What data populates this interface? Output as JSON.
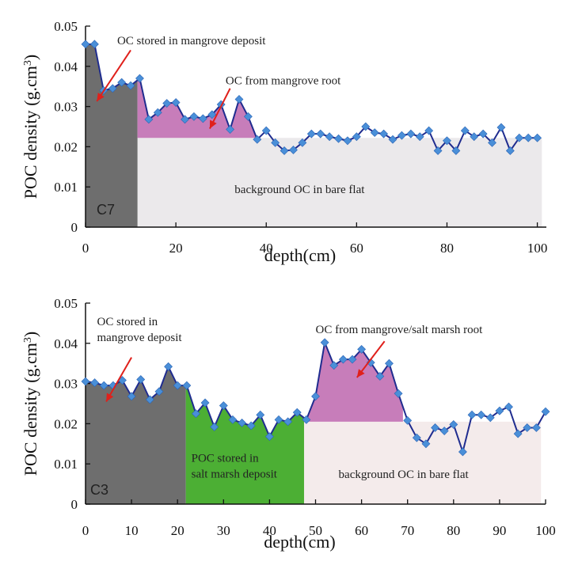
{
  "chart_data": [
    {
      "type": "line",
      "panel_label": "C7",
      "xlabel": "depth(cm)",
      "ylabel": "POC density (g.cm",
      "ylabel_sup": "3",
      "ylabel_end": ")",
      "xlim": [
        0,
        102
      ],
      "ylim": [
        0,
        0.05
      ],
      "xticks": [
        0,
        20,
        40,
        60,
        80,
        100
      ],
      "yticks": [
        0,
        0.01,
        0.02,
        0.03,
        0.04,
        0.05
      ],
      "ytick_labels": [
        "0",
        "0.01",
        "0.02",
        "0.03",
        "0.04",
        "0.05"
      ],
      "line_color": "#1f2c8f",
      "marker_color": "#4a8fd8",
      "background_level": 0.0222,
      "regions": [
        {
          "name": "mangrove-deposit",
          "color": "#6e6e6e",
          "x_start": 0,
          "x_end": 11.5,
          "baseline": 0
        },
        {
          "name": "mangrove-root",
          "color": "#c77dba",
          "x_start": 11.5,
          "x_end": 38,
          "baseline": 0.0222
        },
        {
          "name": "bare-flat",
          "color": "#ebe9eb",
          "x_start": 11.5,
          "x_end": 101,
          "baseline": 0,
          "top": 0.0222
        }
      ],
      "annotations": [
        {
          "text": "OC stored in mangrove deposit",
          "x": 7,
          "y": 0.0455,
          "arrow_from": [
            10,
            0.044
          ],
          "arrow_to": [
            2.5,
            0.0313
          ]
        },
        {
          "text": "OC from mangrove root",
          "x": 31,
          "y": 0.0355,
          "arrow_from": [
            32,
            0.0345
          ],
          "arrow_to": [
            27.5,
            0.0245
          ]
        },
        {
          "text": "background OC  in bare flat",
          "x": 33,
          "y": 0.0085
        }
      ],
      "x": [
        0,
        2,
        4,
        6,
        8,
        10,
        12,
        14,
        16,
        18,
        20,
        22,
        24,
        26,
        28,
        30,
        32,
        34,
        36,
        38,
        40,
        42,
        44,
        46,
        48,
        50,
        52,
        54,
        56,
        58,
        60,
        62,
        64,
        66,
        68,
        70,
        72,
        74,
        76,
        78,
        80,
        82,
        84,
        86,
        88,
        90,
        92,
        94,
        96,
        98,
        100
      ],
      "y": [
        0.0455,
        0.0455,
        0.034,
        0.0345,
        0.036,
        0.0352,
        0.037,
        0.0268,
        0.0285,
        0.0308,
        0.031,
        0.0268,
        0.0275,
        0.027,
        0.028,
        0.0305,
        0.0243,
        0.0318,
        0.0275,
        0.0218,
        0.024,
        0.021,
        0.019,
        0.0192,
        0.021,
        0.0232,
        0.0232,
        0.0225,
        0.022,
        0.0215,
        0.0225,
        0.025,
        0.0235,
        0.0232,
        0.0218,
        0.0228,
        0.0232,
        0.0225,
        0.024,
        0.019,
        0.0215,
        0.019,
        0.024,
        0.0225,
        0.0232,
        0.021,
        0.0248,
        0.019,
        0.0222,
        0.0222,
        0.0222
      ]
    },
    {
      "type": "line",
      "panel_label": "C3",
      "xlabel": "depth(cm)",
      "ylabel": "POC density (g.cm",
      "ylabel_sup": "3",
      "ylabel_end": ")",
      "xlim": [
        0,
        100
      ],
      "ylim": [
        0,
        0.05
      ],
      "xticks": [
        0,
        10,
        20,
        30,
        40,
        50,
        60,
        70,
        80,
        90,
        100
      ],
      "yticks": [
        0,
        0.01,
        0.02,
        0.03,
        0.04,
        0.05
      ],
      "ytick_labels": [
        "0",
        "0.01",
        "0.02",
        "0.03",
        "0.04",
        "0.05"
      ],
      "line_color": "#1f2c8f",
      "marker_color": "#4a8fd8",
      "background_level": 0.0205,
      "regions": [
        {
          "name": "mangrove-deposit",
          "color": "#6e6e6e",
          "x_start": 0,
          "x_end": 21.8,
          "baseline": 0
        },
        {
          "name": "salt-marsh-deposit",
          "color": "#4caf34",
          "x_start": 21.8,
          "x_end": 47.5,
          "baseline": 0
        },
        {
          "name": "mangrove-salt-marsh-root",
          "color": "#c77dba",
          "x_start": 48,
          "x_end": 69,
          "baseline": 0.0205
        },
        {
          "name": "bare-flat",
          "color": "#f4ebeb",
          "x_start": 47.5,
          "x_end": 99,
          "baseline": 0,
          "top": 0.0205
        }
      ],
      "annotations": [
        {
          "lines": [
            "OC stored in",
            "mangrove deposit"
          ],
          "x": 2.5,
          "y": 0.0445,
          "arrow_from": [
            10,
            0.0365
          ],
          "arrow_to": [
            4.5,
            0.0255
          ]
        },
        {
          "text": "OC from mangrove/salt marsh root",
          "x": 50,
          "y": 0.0425,
          "arrow_from": [
            65,
            0.0405
          ],
          "arrow_to": [
            59,
            0.0315
          ]
        },
        {
          "lines": [
            "POC stored in",
            "salt marsh deposit"
          ],
          "x": 23,
          "y": 0.0105
        },
        {
          "text": "background OC in bare flat",
          "x": 55,
          "y": 0.0065
        }
      ],
      "x": [
        0,
        2,
        4,
        6,
        8,
        10,
        12,
        14,
        16,
        18,
        20,
        22,
        24,
        26,
        28,
        30,
        32,
        34,
        36,
        38,
        40,
        42,
        44,
        46,
        48,
        50,
        52,
        54,
        56,
        58,
        60,
        62,
        64,
        66,
        68,
        70,
        72,
        74,
        76,
        78,
        80,
        82,
        84,
        86,
        88,
        90,
        92,
        94,
        96,
        98,
        100
      ],
      "y": [
        0.0305,
        0.0302,
        0.0295,
        0.0295,
        0.0308,
        0.0268,
        0.031,
        0.026,
        0.028,
        0.0342,
        0.0295,
        0.0295,
        0.0225,
        0.0252,
        0.0192,
        0.0245,
        0.021,
        0.0202,
        0.0195,
        0.0222,
        0.0168,
        0.021,
        0.0205,
        0.0228,
        0.021,
        0.0268,
        0.0402,
        0.0345,
        0.036,
        0.036,
        0.0385,
        0.0352,
        0.0318,
        0.035,
        0.0275,
        0.0208,
        0.0165,
        0.015,
        0.019,
        0.0182,
        0.0198,
        0.013,
        0.0222,
        0.0222,
        0.0215,
        0.0232,
        0.0242,
        0.0175,
        0.019,
        0.019,
        0.023
      ]
    }
  ]
}
